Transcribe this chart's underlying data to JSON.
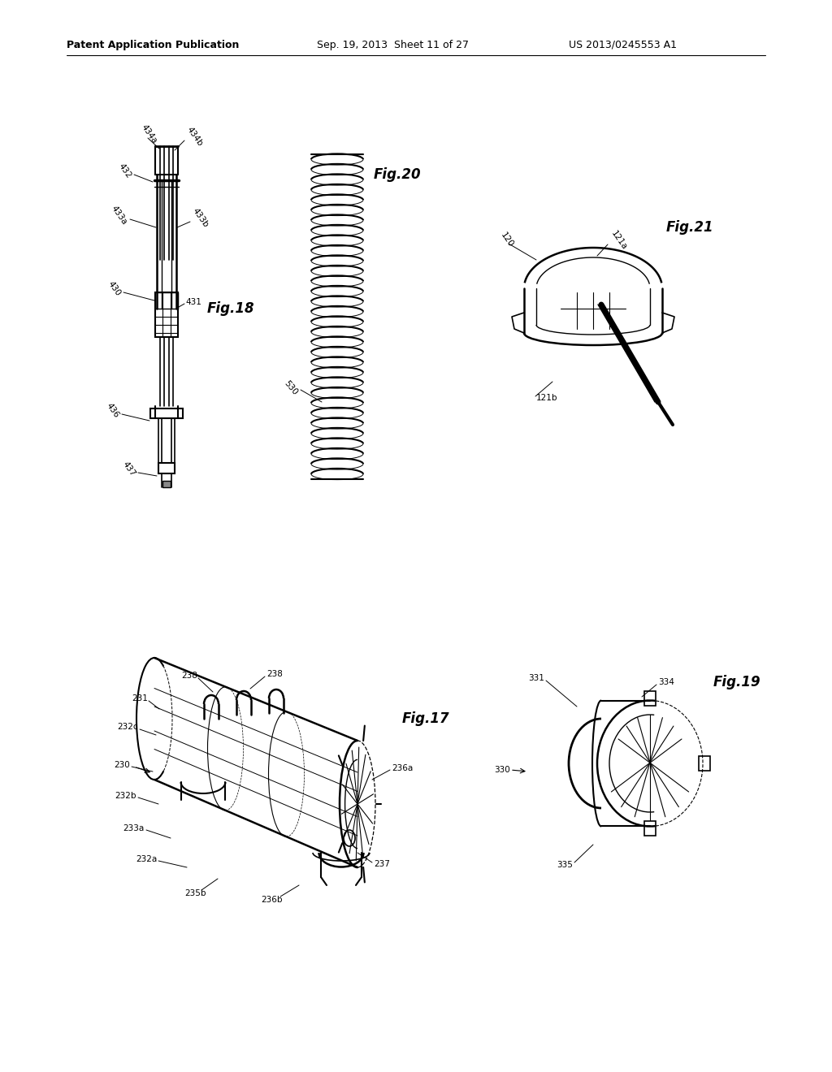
{
  "bg_color": "#ffffff",
  "header_left": "Patent Application Publication",
  "header_mid": "Sep. 19, 2013  Sheet 11 of 27",
  "header_right": "US 2013/0245553 A1",
  "fig18_label": "Fig.18",
  "fig20_label": "Fig.20",
  "fig21_label": "Fig.21",
  "fig17_label": "Fig.17",
  "fig19_label": "Fig.19",
  "text_color": "#000000",
  "line_color": "#000000",
  "gray_light": "#cccccc",
  "gray_mid": "#999999",
  "gray_dark": "#555555"
}
